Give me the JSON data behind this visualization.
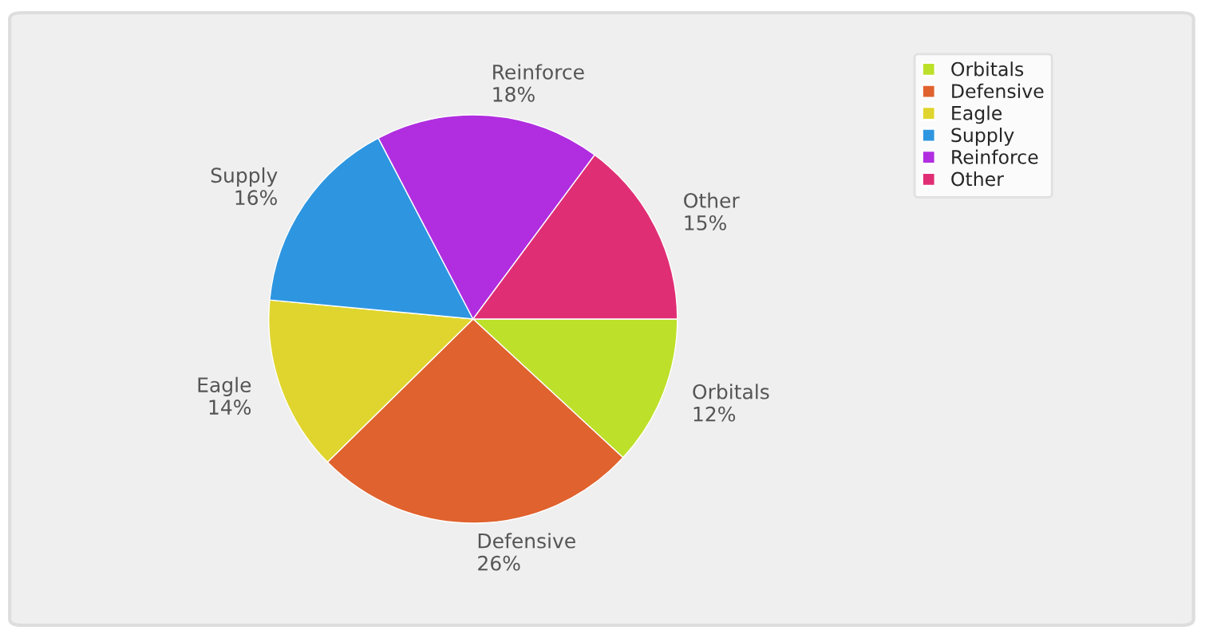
{
  "chart_data": {
    "type": "pie",
    "categories": [
      "Orbitals",
      "Defensive",
      "Eagle",
      "Supply",
      "Reinforce",
      "Other"
    ],
    "values": [
      12,
      26,
      14,
      16,
      18,
      15
    ],
    "value_labels": [
      "12%",
      "26%",
      "14%",
      "16%",
      "18%",
      "15%"
    ],
    "colors": [
      "#bde02a",
      "#e0622e",
      "#e0d52e",
      "#2e96e0",
      "#b02ee0",
      "#e02e74"
    ],
    "legend": "top right"
  }
}
